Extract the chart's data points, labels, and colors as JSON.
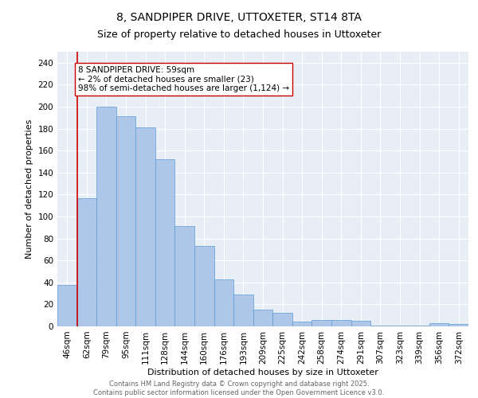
{
  "title1": "8, SANDPIPER DRIVE, UTTOXETER, ST14 8TA",
  "title2": "Size of property relative to detached houses in Uttoxeter",
  "xlabel": "Distribution of detached houses by size in Uttoxeter",
  "ylabel": "Number of detached properties",
  "categories": [
    "46sqm",
    "62sqm",
    "79sqm",
    "95sqm",
    "111sqm",
    "128sqm",
    "144sqm",
    "160sqm",
    "176sqm",
    "193sqm",
    "209sqm",
    "225sqm",
    "242sqm",
    "258sqm",
    "274sqm",
    "291sqm",
    "307sqm",
    "323sqm",
    "339sqm",
    "356sqm",
    "372sqm"
  ],
  "values": [
    38,
    117,
    200,
    191,
    181,
    152,
    91,
    73,
    43,
    29,
    15,
    12,
    4,
    6,
    6,
    5,
    1,
    1,
    1,
    3,
    2
  ],
  "bar_color": "#aec6e8",
  "bar_edge_color": "#5b9bd5",
  "marker_line_color": "#cc0000",
  "annotation_text": "8 SANDPIPER DRIVE: 59sqm\n← 2% of detached houses are smaller (23)\n98% of semi-detached houses are larger (1,124) →",
  "annotation_box_color": "#ffffff",
  "annotation_box_edge": "#cc0000",
  "footer_text": "Contains HM Land Registry data © Crown copyright and database right 2025.\nContains public sector information licensed under the Open Government Licence v3.0.",
  "ylim": [
    0,
    250
  ],
  "yticks": [
    0,
    20,
    40,
    60,
    80,
    100,
    120,
    140,
    160,
    180,
    200,
    220,
    240
  ],
  "bg_color": "#e8eef6",
  "fig_bg_color": "#ffffff",
  "title_fontsize": 10,
  "subtitle_fontsize": 9,
  "axis_fontsize": 8,
  "tick_fontsize": 7.5,
  "footer_fontsize": 6,
  "annotation_fontsize": 7.5
}
